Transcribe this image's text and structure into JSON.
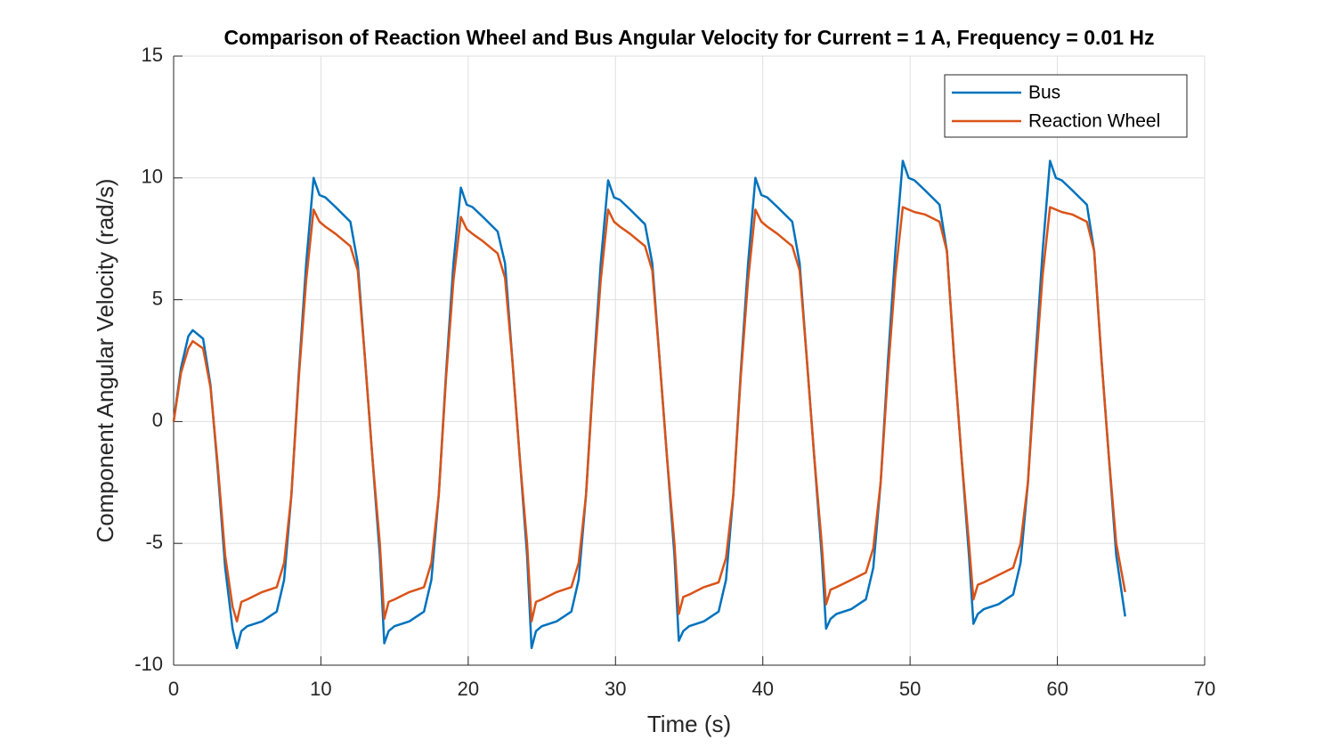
{
  "chart_data": {
    "type": "line",
    "title": "Comparison of Reaction Wheel and Bus Angular Velocity for Current = 1 A, Frequency = 0.01 Hz",
    "xlabel": "Time (s)",
    "ylabel": "Component Angular Velocity (rad/s)",
    "xlim": [
      0,
      70
    ],
    "ylim": [
      -10,
      15
    ],
    "xticks": [
      0,
      10,
      20,
      30,
      40,
      50,
      60,
      70
    ],
    "yticks": [
      -10,
      -5,
      0,
      5,
      10,
      15
    ],
    "grid": true,
    "legend": "upper right",
    "x": [
      0,
      0.5,
      1,
      1.3,
      2,
      2.5,
      3,
      3.5,
      4,
      4.3,
      4.6,
      5,
      6,
      7,
      7.5,
      8,
      8.5,
      9,
      9.5,
      9.9,
      10.3,
      11,
      12,
      12.5,
      13,
      13.5,
      14,
      14.3,
      14.6,
      15,
      16,
      17,
      17.5,
      18,
      18.5,
      19,
      19.5,
      19.9,
      20.3,
      21,
      22,
      22.5,
      23,
      23.5,
      24,
      24.3,
      24.6,
      25,
      26,
      27,
      27.5,
      28,
      28.5,
      29,
      29.5,
      29.9,
      30.3,
      31,
      32,
      32.5,
      33,
      33.5,
      34,
      34.3,
      34.6,
      35,
      36,
      37,
      37.5,
      38,
      38.5,
      39,
      39.5,
      39.9,
      40.3,
      41,
      42,
      42.5,
      43,
      43.5,
      44,
      44.3,
      44.6,
      45,
      46,
      47,
      47.5,
      48,
      48.5,
      49,
      49.5,
      49.9,
      50.3,
      51,
      52,
      52.5,
      53,
      53.5,
      54,
      54.3,
      54.6,
      55,
      56,
      57,
      57.5,
      58,
      58.5,
      59,
      59.5,
      59.9,
      60.3,
      61,
      62,
      62.5,
      63,
      63.5,
      64,
      64.6
    ],
    "series": [
      {
        "name": "Bus",
        "color": "#0072bd",
        "values": [
          0,
          2.2,
          3.5,
          3.75,
          3.4,
          1.5,
          -2,
          -6,
          -8.5,
          -9.3,
          -8.6,
          -8.4,
          -8.2,
          -7.8,
          -6.5,
          -3,
          2,
          6.5,
          10,
          9.3,
          9.2,
          8.8,
          8.2,
          6.5,
          2.5,
          -1.5,
          -5.5,
          -9.1,
          -8.6,
          -8.4,
          -8.2,
          -7.8,
          -6.5,
          -3,
          2,
          6.5,
          9.6,
          8.9,
          8.8,
          8.4,
          7.8,
          6.5,
          2.5,
          -1.5,
          -5.5,
          -9.3,
          -8.6,
          -8.4,
          -8.2,
          -7.8,
          -6.5,
          -3,
          2,
          6.5,
          9.9,
          9.2,
          9.1,
          8.7,
          8.1,
          6.5,
          2.5,
          -1.5,
          -5.5,
          -9,
          -8.6,
          -8.4,
          -8.2,
          -7.8,
          -6.5,
          -3,
          2,
          6.5,
          10,
          9.3,
          9.2,
          8.8,
          8.2,
          6.5,
          2.5,
          -1.5,
          -5.5,
          -8.5,
          -8.1,
          -7.9,
          -7.7,
          -7.3,
          -6,
          -2.5,
          2.5,
          7,
          10.7,
          10,
          9.9,
          9.5,
          8.9,
          7,
          2.5,
          -1.5,
          -5.5,
          -8.3,
          -7.9,
          -7.7,
          -7.5,
          -7.1,
          -5.8,
          -2.5,
          2.5,
          7,
          10.7,
          10,
          9.9,
          9.5,
          8.9,
          7,
          2.5,
          -1.5,
          -5.5,
          -8
        ]
      },
      {
        "name": "Reaction Wheel",
        "color": "#d95319",
        "values": [
          0,
          2,
          3,
          3.3,
          3,
          1.4,
          -1.8,
          -5.5,
          -7.6,
          -8.2,
          -7.4,
          -7.3,
          -7,
          -6.8,
          -5.8,
          -3,
          1.8,
          5.8,
          8.7,
          8.2,
          8,
          7.7,
          7.2,
          6.2,
          2.5,
          -1.5,
          -5,
          -8.1,
          -7.4,
          -7.3,
          -7,
          -6.8,
          -5.8,
          -3,
          1.8,
          5.8,
          8.4,
          7.9,
          7.7,
          7.4,
          6.9,
          5.9,
          2.5,
          -1.5,
          -5,
          -8.2,
          -7.4,
          -7.3,
          -7,
          -6.8,
          -5.8,
          -3,
          1.8,
          5.8,
          8.7,
          8.2,
          8,
          7.7,
          7.2,
          6.2,
          2.5,
          -1.5,
          -5,
          -7.9,
          -7.2,
          -7.1,
          -6.8,
          -6.6,
          -5.6,
          -3,
          1.8,
          5.8,
          8.7,
          8.2,
          8,
          7.7,
          7.2,
          6.2,
          2.5,
          -1.5,
          -5,
          -7.5,
          -6.9,
          -6.8,
          -6.5,
          -6.2,
          -5.2,
          -2.5,
          2,
          6,
          8.8,
          8.7,
          8.6,
          8.5,
          8.2,
          7,
          2.5,
          -1.5,
          -5,
          -7.3,
          -6.7,
          -6.6,
          -6.3,
          -6,
          -5,
          -2.5,
          2,
          6,
          8.8,
          8.7,
          8.6,
          8.5,
          8.2,
          7,
          2.5,
          -1.5,
          -5,
          -7
        ]
      }
    ]
  }
}
